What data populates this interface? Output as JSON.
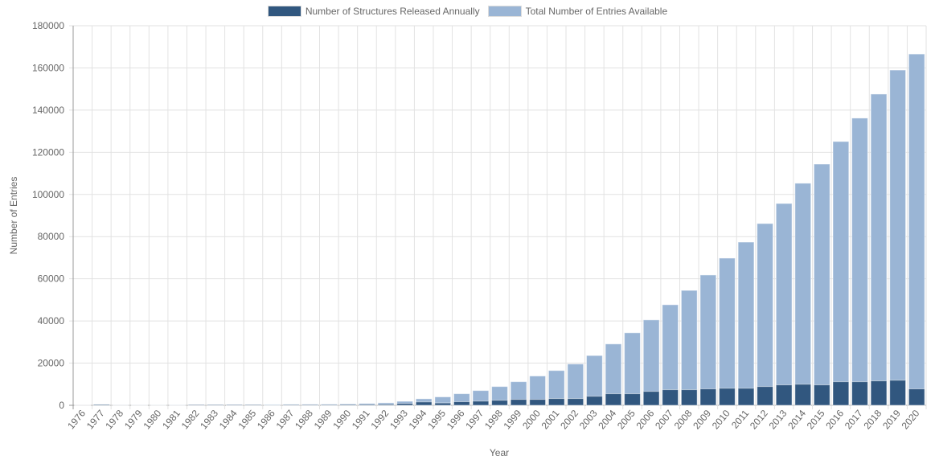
{
  "chart_data": {
    "type": "bar",
    "xlabel": "Year",
    "ylabel": "Number of Entries",
    "ylim": [
      0,
      180000
    ],
    "yticks": [
      0,
      20000,
      40000,
      60000,
      80000,
      100000,
      120000,
      140000,
      160000,
      180000
    ],
    "grid": true,
    "legend_position": "top",
    "categories": [
      "1976",
      "1977",
      "1978",
      "1979",
      "1980",
      "1981",
      "1982",
      "1983",
      "1984",
      "1985",
      "1986",
      "1987",
      "1988",
      "1989",
      "1990",
      "1991",
      "1992",
      "1993",
      "1994",
      "1995",
      "1996",
      "1997",
      "1998",
      "1999",
      "2000",
      "2001",
      "2002",
      "2003",
      "2004",
      "2005",
      "2006",
      "2007",
      "2008",
      "2009",
      "2010",
      "2011",
      "2012",
      "2013",
      "2014",
      "2015",
      "2016",
      "2017",
      "2018",
      "2019",
      "2020"
    ],
    "series": [
      {
        "name": "Number of Structures Released Annually",
        "color": "#31577f",
        "values": [
          13,
          400,
          30,
          20,
          20,
          30,
          300,
          300,
          300,
          300,
          30,
          300,
          300,
          300,
          400,
          450,
          500,
          900,
          1600,
          1100,
          1700,
          2000,
          2400,
          2800,
          2800,
          3200,
          3200,
          4300,
          5500,
          5500,
          6600,
          7400,
          7400,
          7800,
          8100,
          8100,
          8900,
          9700,
          10000,
          9700,
          11200,
          11200,
          11600,
          11900,
          7800
        ]
      },
      {
        "name": "Total Number of Entries Available",
        "color": "#9ab5d5",
        "values": [
          13,
          60,
          90,
          110,
          130,
          160,
          200,
          250,
          300,
          350,
          400,
          450,
          500,
          550,
          700,
          900,
          1200,
          1900,
          3100,
          4000,
          5500,
          7000,
          8900,
          11200,
          13900,
          16500,
          19600,
          23600,
          29100,
          34400,
          40500,
          47700,
          54500,
          61800,
          69800,
          77400,
          86200,
          95700,
          105300,
          114400,
          125100,
          136200,
          147600,
          159000,
          166600
        ]
      }
    ]
  }
}
